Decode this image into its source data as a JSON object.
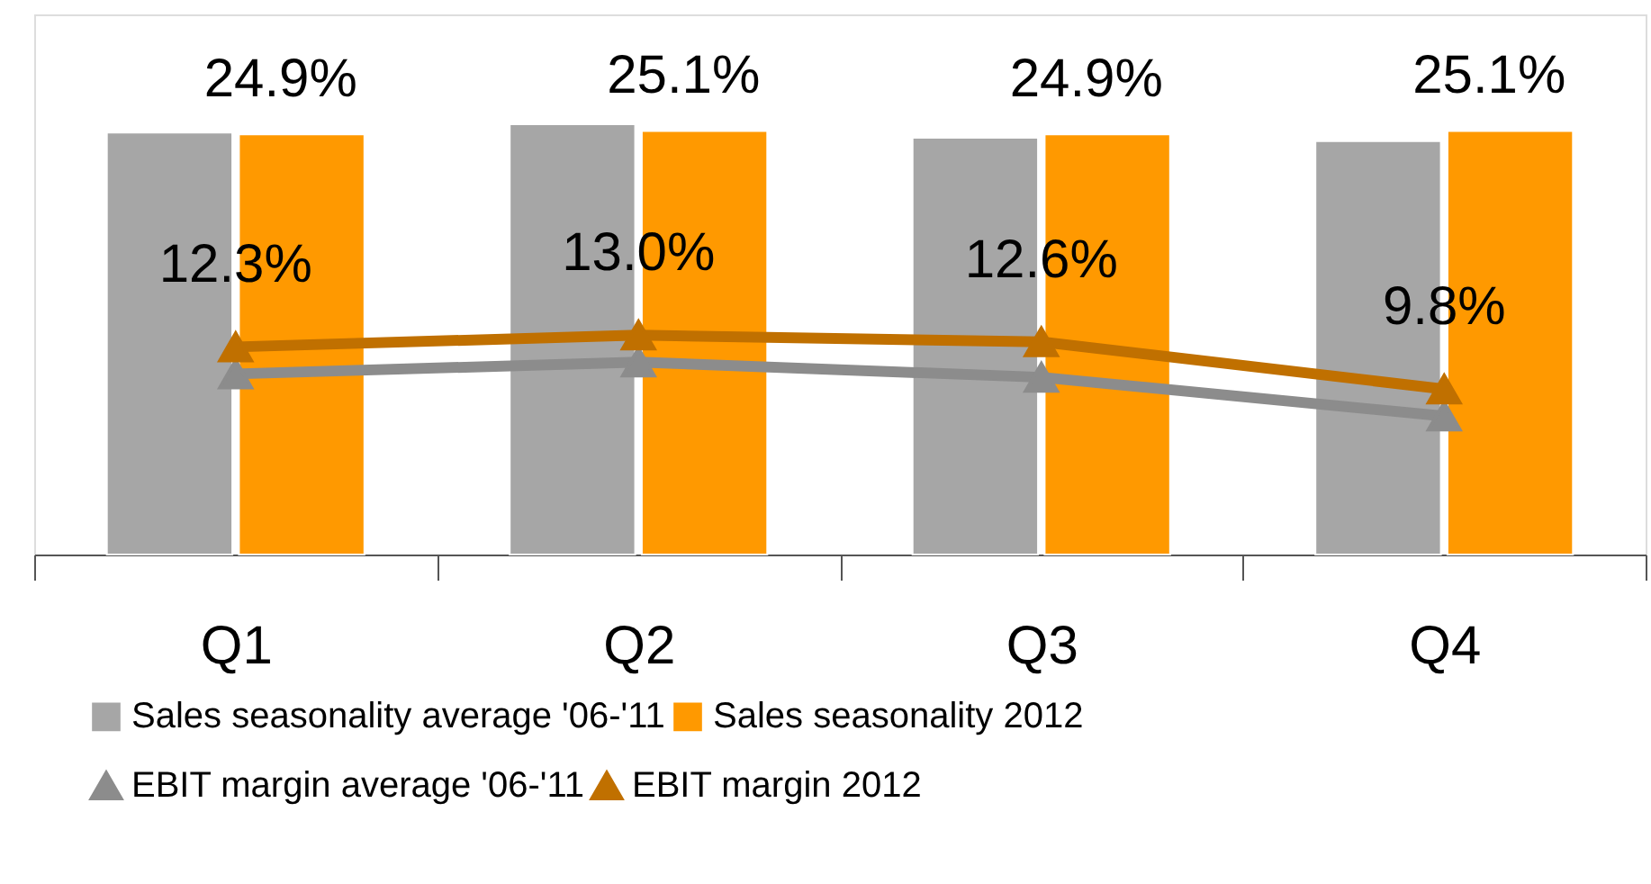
{
  "chart_data": {
    "type": "bar",
    "categories": [
      "Q1",
      "Q2",
      "Q3",
      "Q4"
    ],
    "ylim": [
      0,
      32
    ],
    "tick_labels": "x",
    "grid": false,
    "legend": "bottom",
    "marker": "triangle",
    "series": [
      {
        "name": "Sales seasonality average '06-'11",
        "color": "#a6a6a6",
        "values": [
          25.0,
          25.5,
          24.7,
          24.5
        ]
      },
      {
        "name": "Sales seasonality 2012",
        "color": "#ff9900",
        "values": [
          24.9,
          25.1,
          24.9,
          25.1
        ],
        "value_labels": [
          "24.9%",
          "25.1%",
          "24.9%",
          "25.1%"
        ]
      },
      {
        "name": "EBIT margin average '06-'11",
        "type": "line",
        "color": "#8c8c8c",
        "values": [
          10.7,
          11.4,
          10.5,
          8.2
        ]
      },
      {
        "name": "EBIT margin 2012",
        "type": "line",
        "color": "#c07000",
        "values": [
          12.3,
          13.0,
          12.6,
          9.8
        ],
        "value_labels": [
          "12.3%",
          "13.0%",
          "12.6%",
          "9.8%"
        ]
      }
    ]
  }
}
